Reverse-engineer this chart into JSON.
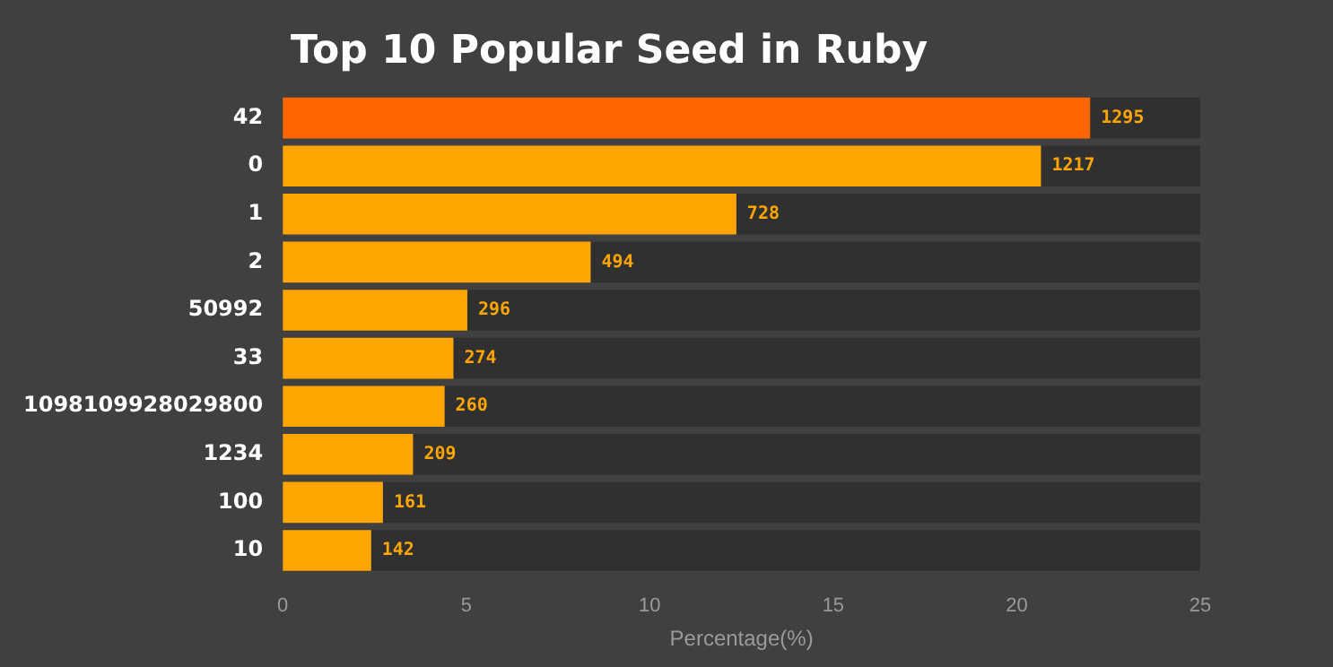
{
  "chart_data": {
    "type": "bar",
    "orientation": "horizontal",
    "stacked": true,
    "title": "Top 10 Popular Seed in Ruby",
    "xlabel": "Percentage(%)",
    "categories": [
      "42",
      "0",
      "1",
      "2",
      "50992",
      "33",
      "1098109928029800",
      "1234",
      "100",
      "10"
    ],
    "series": [
      {
        "colors": [
          "#ff6600",
          "#ffa500",
          "#ffa500",
          "#ffa500",
          "#ffa500",
          "#ffa500",
          "#ffa500",
          "#ffa500",
          "#ffa500",
          "#ffa500"
        ],
        "values": [
          22.0,
          20.66,
          12.36,
          8.39,
          5.03,
          4.65,
          4.41,
          3.55,
          2.73,
          2.41
        ]
      },
      {
        "color": "#303030",
        "values": [
          3.0,
          4.34,
          12.64,
          16.61,
          19.97,
          20.35,
          20.59,
          21.45,
          22.27,
          22.59
        ]
      }
    ],
    "annotations": [
      {
        "text": "1295",
        "x": 22.0,
        "y": "42"
      },
      {
        "text": "1217",
        "x": 20.66,
        "y": "0"
      },
      {
        "text": "728",
        "x": 12.36,
        "y": "1"
      },
      {
        "text": "494",
        "x": 8.39,
        "y": "2"
      },
      {
        "text": "296",
        "x": 5.03,
        "y": "50992"
      },
      {
        "text": "274",
        "x": 4.65,
        "y": "33"
      },
      {
        "text": "260",
        "x": 4.41,
        "y": "1098109928029800"
      },
      {
        "text": "209",
        "x": 3.55,
        "y": "1234"
      },
      {
        "text": "161",
        "x": 2.73,
        "y": "100"
      },
      {
        "text": "142",
        "x": 2.41,
        "y": "10"
      }
    ],
    "xlim": [
      0,
      25
    ],
    "xticks": [
      0,
      5,
      10,
      15,
      20,
      25
    ],
    "grid": false,
    "legend": false
  }
}
